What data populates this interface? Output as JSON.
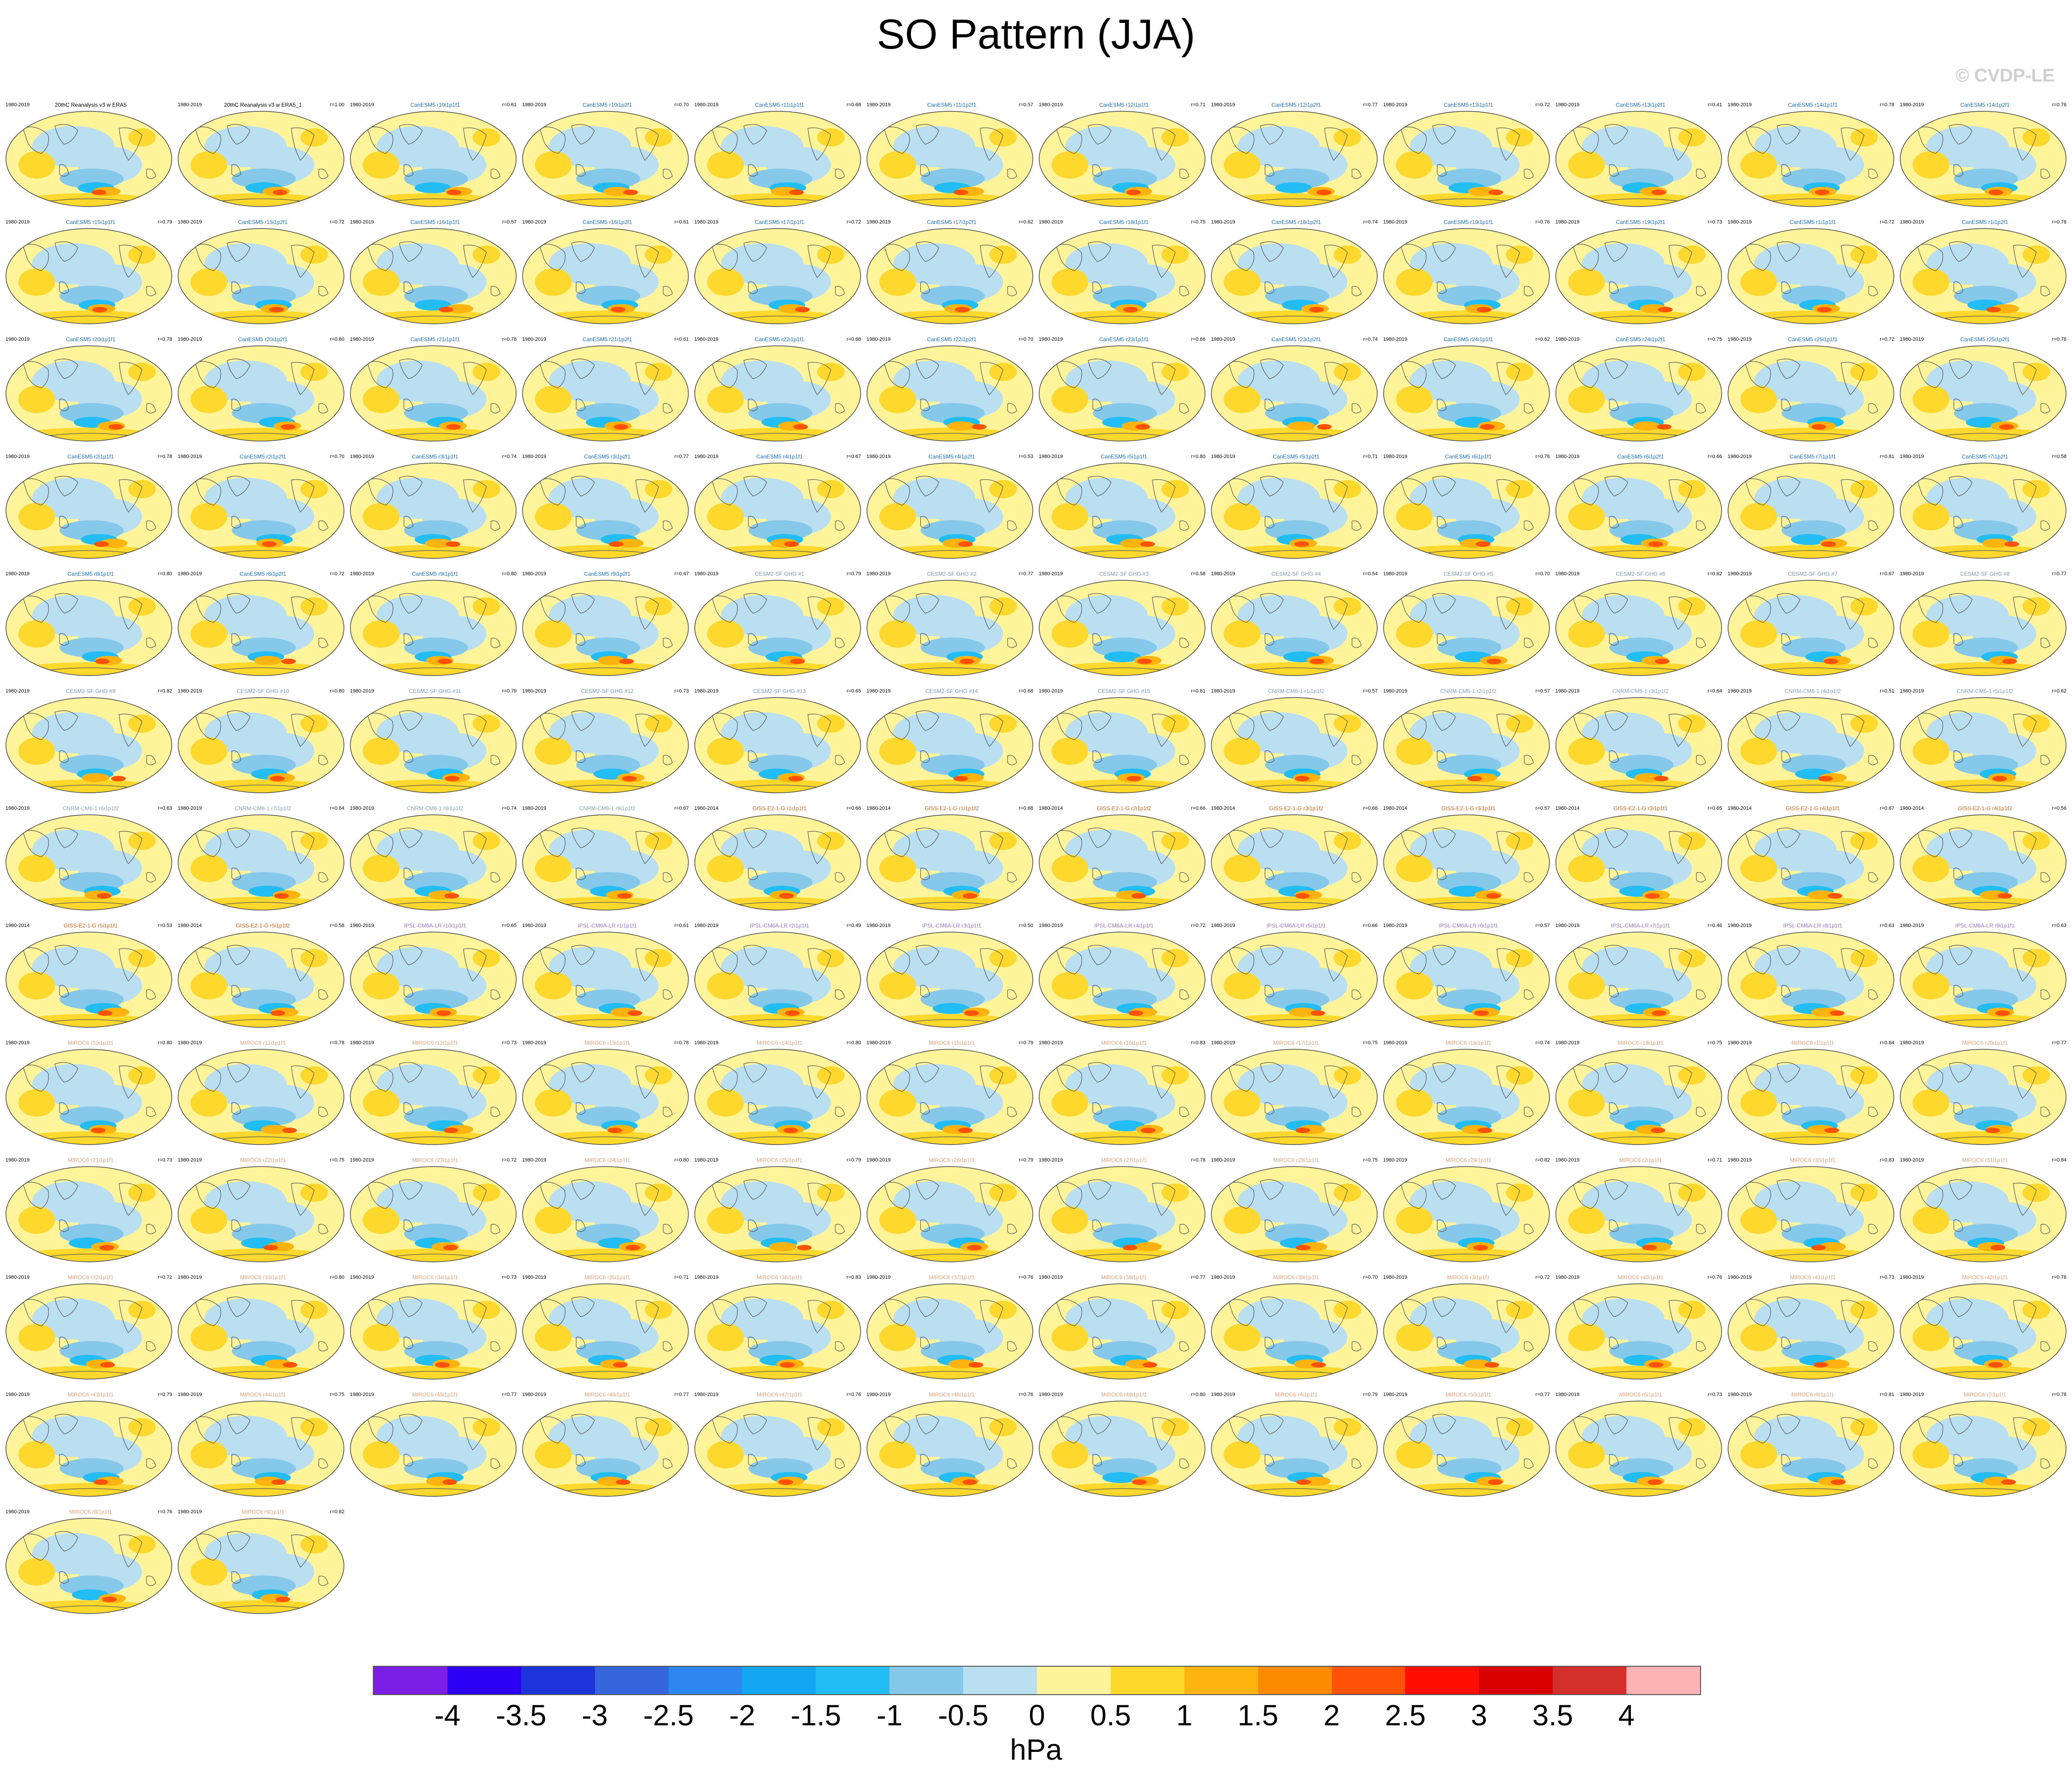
{
  "title": "SO Pattern (JJA)",
  "watermark": "© CVDP-LE",
  "units": "hPa",
  "colorbar": {
    "ticks": [
      "-4",
      "-3.5",
      "-3",
      "-2.5",
      "-2",
      "-1.5",
      "-1",
      "-0.5",
      "0",
      "0.5",
      "1",
      "1.5",
      "2",
      "2.5",
      "3",
      "3.5",
      "4"
    ],
    "colors": [
      "#7c1fe6",
      "#2b00f5",
      "#1c34d9",
      "#3566dc",
      "#2e86f0",
      "#13a6f2",
      "#22bdf4",
      "#86c8ea",
      "#b9dff0",
      "#fff49a",
      "#fed82d",
      "#feb30f",
      "#fe8a00",
      "#fe5207",
      "#fe0e00",
      "#d80000",
      "#d42f2d",
      "#fbb3b3"
    ]
  },
  "panels": [
    {
      "title": "20thC Reanalysis v3 w ERA5",
      "years": "1980-2019",
      "corr": "",
      "color": "#000000"
    },
    {
      "title": "20thC Reanalysis v3 w ERA5_1",
      "years": "1980-2019",
      "corr": "r=1.00",
      "color": "#000000"
    },
    {
      "title": "CanESM5 r10i1p1f1",
      "years": "1980-2019",
      "corr": "r=0.61",
      "color": "#1a6fbf"
    },
    {
      "title": "CanESM5 r10i1p2f1",
      "years": "1980-2019",
      "corr": "r=0.70",
      "color": "#1a6fbf"
    },
    {
      "title": "CanESM5 r11i1p1f1",
      "years": "1980-2019",
      "corr": "r=0.68",
      "color": "#1a6fbf"
    },
    {
      "title": "CanESM5 r11i1p2f1",
      "years": "1980-2019",
      "corr": "r=0.57",
      "color": "#1a6fbf"
    },
    {
      "title": "CanESM5 r12i1p1f1",
      "years": "1980-2019",
      "corr": "r=0.71",
      "color": "#1a6fbf"
    },
    {
      "title": "CanESM5 r12i1p2f1",
      "years": "1980-2019",
      "corr": "r=0.77",
      "color": "#1a6fbf"
    },
    {
      "title": "CanESM5 r13i1p1f1",
      "years": "1980-2019",
      "corr": "r=0.72",
      "color": "#1a6fbf"
    },
    {
      "title": "CanESM5 r13i1p2f1",
      "years": "1980-2019",
      "corr": "r=0.41",
      "color": "#1a6fbf"
    },
    {
      "title": "CanESM5 r14i1p1f1",
      "years": "1980-2019",
      "corr": "r=0.78",
      "color": "#1a6fbf"
    },
    {
      "title": "CanESM5 r14i1p2f1",
      "years": "1980-2019",
      "corr": "r=0.76",
      "color": "#1a6fbf"
    },
    {
      "title": "CanESM5 r15i1p1f1",
      "years": "1980-2019",
      "corr": "r=0.79",
      "color": "#1a6fbf"
    },
    {
      "title": "CanESM5 r15i1p2f1",
      "years": "1980-2019",
      "corr": "r=0.72",
      "color": "#1a6fbf"
    },
    {
      "title": "CanESM5 r16i1p1f1",
      "years": "1980-2019",
      "corr": "r=0.57",
      "color": "#1a6fbf"
    },
    {
      "title": "CanESM5 r16i1p2f1",
      "years": "1980-2019",
      "corr": "r=0.61",
      "color": "#1a6fbf"
    },
    {
      "title": "CanESM5 r17i1p1f1",
      "years": "1980-2019",
      "corr": "r=0.72",
      "color": "#1a6fbf"
    },
    {
      "title": "CanESM5 r17i1p2f1",
      "years": "1980-2019",
      "corr": "r=0.62",
      "color": "#1a6fbf"
    },
    {
      "title": "CanESM5 r18i1p1f1",
      "years": "1980-2019",
      "corr": "r=0.75",
      "color": "#1a6fbf"
    },
    {
      "title": "CanESM5 r18i1p2f1",
      "years": "1980-2019",
      "corr": "r=0.74",
      "color": "#1a6fbf"
    },
    {
      "title": "CanESM5 r19i1p1f1",
      "years": "1980-2019",
      "corr": "r=0.76",
      "color": "#1a6fbf"
    },
    {
      "title": "CanESM5 r19i1p2f1",
      "years": "1980-2019",
      "corr": "r=0.73",
      "color": "#1a6fbf"
    },
    {
      "title": "CanESM5 r1i1p1f1",
      "years": "1980-2019",
      "corr": "r=0.72",
      "color": "#1a6fbf"
    },
    {
      "title": "CanESM5 r1i1p2f1",
      "years": "1980-2019",
      "corr": "r=0.78",
      "color": "#1a6fbf"
    },
    {
      "title": "CanESM5 r20i1p1f1",
      "years": "1980-2019",
      "corr": "r=0.78",
      "color": "#1a6fbf"
    },
    {
      "title": "CanESM5 r20i1p2f1",
      "years": "1980-2019",
      "corr": "r=0.80",
      "color": "#1a6fbf"
    },
    {
      "title": "CanESM5 r21i1p1f1",
      "years": "1980-2019",
      "corr": "r=0.78",
      "color": "#1a6fbf"
    },
    {
      "title": "CanESM5 r21i1p2f1",
      "years": "1980-2019",
      "corr": "r=0.61",
      "color": "#1a6fbf"
    },
    {
      "title": "CanESM5 r22i1p1f1",
      "years": "1980-2019",
      "corr": "r=0.68",
      "color": "#1a6fbf"
    },
    {
      "title": "CanESM5 r22i1p2f1",
      "years": "1980-2019",
      "corr": "r=0.70",
      "color": "#1a6fbf"
    },
    {
      "title": "CanESM5 r23i1p1f1",
      "years": "1980-2019",
      "corr": "r=0.66",
      "color": "#1a6fbf"
    },
    {
      "title": "CanESM5 r23i1p2f1",
      "years": "1980-2019",
      "corr": "r=0.74",
      "color": "#1a6fbf"
    },
    {
      "title": "CanESM5 r24i1p1f1",
      "years": "1980-2019",
      "corr": "r=0.62",
      "color": "#1a6fbf"
    },
    {
      "title": "CanESM5 r24i1p2f1",
      "years": "1980-2019",
      "corr": "r=0.75",
      "color": "#1a6fbf"
    },
    {
      "title": "CanESM5 r25i1p1f1",
      "years": "1980-2019",
      "corr": "r=0.72",
      "color": "#1a6fbf"
    },
    {
      "title": "CanESM5 r25i1p2f1",
      "years": "1980-2019",
      "corr": "r=0.76",
      "color": "#1a6fbf"
    },
    {
      "title": "CanESM5 r2i1p1f1",
      "years": "1980-2019",
      "corr": "r=0.78",
      "color": "#1a6fbf"
    },
    {
      "title": "CanESM5 r2i1p2f1",
      "years": "1980-2019",
      "corr": "r=0.70",
      "color": "#1a6fbf"
    },
    {
      "title": "CanESM5 r3i1p1f1",
      "years": "1980-2019",
      "corr": "r=0.74",
      "color": "#1a6fbf"
    },
    {
      "title": "CanESM5 r3i1p2f1",
      "years": "1980-2019",
      "corr": "r=0.77",
      "color": "#1a6fbf"
    },
    {
      "title": "CanESM5 r4i1p1f1",
      "years": "1980-2019",
      "corr": "r=0.67",
      "color": "#1a6fbf"
    },
    {
      "title": "CanESM5 r4i1p2f1",
      "years": "1980-2019",
      "corr": "r=0.53",
      "color": "#1a6fbf"
    },
    {
      "title": "CanESM5 r5i1p1f1",
      "years": "1980-2019",
      "corr": "r=0.80",
      "color": "#1a6fbf"
    },
    {
      "title": "CanESM5 r5i1p2f1",
      "years": "1980-2019",
      "corr": "r=0.71",
      "color": "#1a6fbf"
    },
    {
      "title": "CanESM5 r6i1p1f1",
      "years": "1980-2019",
      "corr": "r=0.76",
      "color": "#1a6fbf"
    },
    {
      "title": "CanESM5 r6i1p2f1",
      "years": "1980-2019",
      "corr": "r=0.66",
      "color": "#1a6fbf"
    },
    {
      "title": "CanESM5 r7i1p1f1",
      "years": "1980-2019",
      "corr": "r=0.81",
      "color": "#1a6fbf"
    },
    {
      "title": "CanESM5 r7i1p2f1",
      "years": "1980-2019",
      "corr": "r=0.58",
      "color": "#1a6fbf"
    },
    {
      "title": "CanESM5 r8i1p1f1",
      "years": "1980-2019",
      "corr": "r=0.80",
      "color": "#1a6fbf"
    },
    {
      "title": "CanESM5 r8i1p2f1",
      "years": "1980-2019",
      "corr": "r=0.72",
      "color": "#1a6fbf"
    },
    {
      "title": "CanESM5 r9i1p1f1",
      "years": "1980-2019",
      "corr": "r=0.80",
      "color": "#1a6fbf"
    },
    {
      "title": "CanESM5 r9i1p2f1",
      "years": "1980-2019",
      "corr": "r=0.47",
      "color": "#1a6fbf"
    },
    {
      "title": "CESM2-SF GHG #1",
      "years": "1980-2019",
      "corr": "r=0.79",
      "color": "#7a9aa8"
    },
    {
      "title": "CESM2-SF GHG #2",
      "years": "1980-2019",
      "corr": "r=0.77",
      "color": "#7a9aa8"
    },
    {
      "title": "CESM2-SF GHG #3",
      "years": "1980-2019",
      "corr": "r=0.58",
      "color": "#7a9aa8"
    },
    {
      "title": "CESM2-SF GHG #4",
      "years": "1980-2019",
      "corr": "r=0.54",
      "color": "#7a9aa8"
    },
    {
      "title": "CESM2-SF GHG #5",
      "years": "1980-2019",
      "corr": "r=0.70",
      "color": "#7a9aa8"
    },
    {
      "title": "CESM2-SF GHG #6",
      "years": "1980-2019",
      "corr": "r=0.62",
      "color": "#7a9aa8"
    },
    {
      "title": "CESM2-SF GHG #7",
      "years": "1980-2019",
      "corr": "r=0.67",
      "color": "#7a9aa8"
    },
    {
      "title": "CESM2-SF GHG #8",
      "years": "1980-2019",
      "corr": "r=0.77",
      "color": "#7a9aa8"
    },
    {
      "title": "CESM2-SF GHG #9",
      "years": "1980-2019",
      "corr": "r=0.82",
      "color": "#7a9aa8"
    },
    {
      "title": "CESM2-SF GHG #10",
      "years": "1980-2019",
      "corr": "r=0.80",
      "color": "#7a9aa8"
    },
    {
      "title": "CESM2-SF GHG #11",
      "years": "1980-2019",
      "corr": "r=0.79",
      "color": "#7a9aa8"
    },
    {
      "title": "CESM2-SF GHG #12",
      "years": "1980-2019",
      "corr": "r=0.73",
      "color": "#7a9aa8"
    },
    {
      "title": "CESM2-SF GHG #13",
      "years": "1980-2019",
      "corr": "r=0.65",
      "color": "#7a9aa8"
    },
    {
      "title": "CESM2-SF GHG #14",
      "years": "1980-2019",
      "corr": "r=0.68",
      "color": "#7a9aa8"
    },
    {
      "title": "CESM2-SF GHG #15",
      "years": "1980-2019",
      "corr": "r=0.81",
      "color": "#7a9aa8"
    },
    {
      "title": "CNRM-CM6-1 r1i1p1f2",
      "years": "1980-2019",
      "corr": "r=0.57",
      "color": "#8aa0b0"
    },
    {
      "title": "CNRM-CM6-1 r2i1p1f2",
      "years": "1980-2019",
      "corr": "r=0.57",
      "color": "#8aa0b0"
    },
    {
      "title": "CNRM-CM6-1 r3i1p1f2",
      "years": "1980-2019",
      "corr": "r=0.64",
      "color": "#8aa0b0"
    },
    {
      "title": "CNRM-CM6-1 r4i1p1f2",
      "years": "1980-2019",
      "corr": "r=0.51",
      "color": "#8aa0b0"
    },
    {
      "title": "CNRM-CM6-1 r5i1p1f2",
      "years": "1980-2019",
      "corr": "r=0.62",
      "color": "#8aa0b0"
    },
    {
      "title": "CNRM-CM6-1 r6i1p1f2",
      "years": "1980-2019",
      "corr": "r=0.63",
      "color": "#8aa0b0"
    },
    {
      "title": "CNRM-CM6-1 r7i1p1f2",
      "years": "1980-2019",
      "corr": "r=0.64",
      "color": "#8aa0b0"
    },
    {
      "title": "CNRM-CM6-1 r8i1p1f2",
      "years": "1980-2019",
      "corr": "r=0.74",
      "color": "#8aa0b0"
    },
    {
      "title": "CNRM-CM6-1 r9i1p1f2",
      "years": "1980-2019",
      "corr": "r=0.67",
      "color": "#8aa0b0"
    },
    {
      "title": "GISS-E2-1-G r1i1p1f1",
      "years": "1980-2014",
      "corr": "r=0.66",
      "color": "#c8641e"
    },
    {
      "title": "GISS-E2-1-G r1i1p1f2",
      "years": "1980-2014",
      "corr": "r=0.68",
      "color": "#c8641e"
    },
    {
      "title": "GISS-E2-1-G r2i1p1f2",
      "years": "1980-2014",
      "corr": "r=0.66",
      "color": "#c8641e"
    },
    {
      "title": "GISS-E2-1-G r3i1p1f2",
      "years": "1980-2014",
      "corr": "r=0.66",
      "color": "#c8641e"
    },
    {
      "title": "GISS-E2-1-G r3i1p1f1",
      "years": "1980-2014",
      "corr": "r=0.57",
      "color": "#c8641e"
    },
    {
      "title": "GISS-E2-1-G r3i1p1f1",
      "years": "1980-2014",
      "corr": "r=0.65",
      "color": "#c8641e"
    },
    {
      "title": "GISS-E2-1-G r4i1p1f1",
      "years": "1980-2014",
      "corr": "r=0.67",
      "color": "#c8641e"
    },
    {
      "title": "GISS-E2-1-G r4i1p1f2",
      "years": "1980-2014",
      "corr": "r=0.56",
      "color": "#c8641e"
    },
    {
      "title": "GISS-E2-1-G r5i1p1f1",
      "years": "1980-2014",
      "corr": "r=0.53",
      "color": "#c8641e"
    },
    {
      "title": "GISS-E2-1-G r5i1p1f2",
      "years": "1980-2014",
      "corr": "r=0.58",
      "color": "#c8641e"
    },
    {
      "title": "IPSL-CM6A-LR r10i1p1f1",
      "years": "1980-2019",
      "corr": "r=0.65",
      "color": "#9b72c4"
    },
    {
      "title": "IPSL-CM6A-LR r1i1p1f1",
      "years": "1980-2019",
      "corr": "r=0.61",
      "color": "#9b72c4"
    },
    {
      "title": "IPSL-CM6A-LR r2i1p1f1",
      "years": "1980-2019",
      "corr": "r=0.49",
      "color": "#9b72c4"
    },
    {
      "title": "IPSL-CM6A-LR r3i1p1f1",
      "years": "1980-2019",
      "corr": "r=0.50",
      "color": "#9b72c4"
    },
    {
      "title": "IPSL-CM6A-LR r4i1p1f1",
      "years": "1980-2019",
      "corr": "r=0.72",
      "color": "#9b72c4"
    },
    {
      "title": "IPSL-CM6A-LR r5i1p1f1",
      "years": "1980-2019",
      "corr": "r=0.66",
      "color": "#9b72c4"
    },
    {
      "title": "IPSL-CM6A-LR r6i1p1f1",
      "years": "1980-2019",
      "corr": "r=0.57",
      "color": "#9b72c4"
    },
    {
      "title": "IPSL-CM6A-LR r7i1p1f1",
      "years": "1980-2019",
      "corr": "r=0.46",
      "color": "#9b72c4"
    },
    {
      "title": "IPSL-CM6A-LR r8i1p1f1",
      "years": "1980-2019",
      "corr": "r=0.63",
      "color": "#9b72c4"
    },
    {
      "title": "IPSL-CM6A-LR r9i1p1f1",
      "years": "1980-2019",
      "corr": "r=0.63",
      "color": "#9b72c4"
    },
    {
      "title": "MIROC6 r10i1p1f1",
      "years": "1980-2019",
      "corr": "r=0.80",
      "color": "#e5a07a"
    },
    {
      "title": "MIROC6 r11i1p1f1",
      "years": "1980-2019",
      "corr": "r=0.78",
      "color": "#e5a07a"
    },
    {
      "title": "MIROC6 r12i1p1f1",
      "years": "1980-2019",
      "corr": "r=0.73",
      "color": "#e5a07a"
    },
    {
      "title": "MIROC6 r13i1p1f1",
      "years": "1980-2019",
      "corr": "r=0.78",
      "color": "#e5a07a"
    },
    {
      "title": "MIROC6 r14i1p1f1",
      "years": "1980-2019",
      "corr": "r=0.80",
      "color": "#e5a07a"
    },
    {
      "title": "MIROC6 r15i1p1f1",
      "years": "1980-2019",
      "corr": "r=0.79",
      "color": "#e5a07a"
    },
    {
      "title": "MIROC6 r16i1p1f1",
      "years": "1980-2019",
      "corr": "r=0.83",
      "color": "#e5a07a"
    },
    {
      "title": "MIROC6 r17i1p1f1",
      "years": "1980-2019",
      "corr": "r=0.75",
      "color": "#e5a07a"
    },
    {
      "title": "MIROC6 r18i1p1f1",
      "years": "1980-2019",
      "corr": "r=0.74",
      "color": "#e5a07a"
    },
    {
      "title": "MIROC6 r19i1p1f1",
      "years": "1980-2019",
      "corr": "r=0.75",
      "color": "#e5a07a"
    },
    {
      "title": "MIROC6 r1i1p1f1",
      "years": "1980-2019",
      "corr": "r=0.84",
      "color": "#e5a07a"
    },
    {
      "title": "MIROC6 r20i1p1f1",
      "years": "1980-2019",
      "corr": "r=0.77",
      "color": "#e5a07a"
    },
    {
      "title": "MIROC6 r21i1p1f1",
      "years": "1980-2019",
      "corr": "r=0.73",
      "color": "#e5a07a"
    },
    {
      "title": "MIROC6 r22i1p1f1",
      "years": "1980-2019",
      "corr": "r=0.75",
      "color": "#e5a07a"
    },
    {
      "title": "MIROC6 r23i1p1f1",
      "years": "1980-2019",
      "corr": "r=0.72",
      "color": "#e5a07a"
    },
    {
      "title": "MIROC6 r24i1p1f1",
      "years": "1980-2019",
      "corr": "r=0.80",
      "color": "#e5a07a"
    },
    {
      "title": "MIROC6 r25i1p1f1",
      "years": "1980-2019",
      "corr": "r=0.79",
      "color": "#e5a07a"
    },
    {
      "title": "MIROC6 r26i1p1f1",
      "years": "1980-2019",
      "corr": "r=0.79",
      "color": "#e5a07a"
    },
    {
      "title": "MIROC6 r27i1p1f1",
      "years": "1980-2019",
      "corr": "r=0.78",
      "color": "#e5a07a"
    },
    {
      "title": "MIROC6 r28i1p1f1",
      "years": "1980-2019",
      "corr": "r=0.75",
      "color": "#e5a07a"
    },
    {
      "title": "MIROC6 r29i1p1f1",
      "years": "1980-2019",
      "corr": "r=0.82",
      "color": "#e5a07a"
    },
    {
      "title": "MIROC6 r2i1p1f1",
      "years": "1980-2019",
      "corr": "r=0.71",
      "color": "#e5a07a"
    },
    {
      "title": "MIROC6 r30i1p1f1",
      "years": "1980-2019",
      "corr": "r=0.83",
      "color": "#e5a07a"
    },
    {
      "title": "MIROC6 r31i1p1f1",
      "years": "1980-2019",
      "corr": "r=0.84",
      "color": "#e5a07a"
    },
    {
      "title": "MIROC6 r32i1p1f1",
      "years": "1980-2019",
      "corr": "r=0.72",
      "color": "#e5a07a"
    },
    {
      "title": "MIROC6 r33i1p1f1",
      "years": "1980-2019",
      "corr": "r=0.80",
      "color": "#e5a07a"
    },
    {
      "title": "MIROC6 r34i1p1f1",
      "years": "1980-2019",
      "corr": "r=0.73",
      "color": "#e5a07a"
    },
    {
      "title": "MIROC6 r35i1p1f1",
      "years": "1980-2019",
      "corr": "r=0.71",
      "color": "#e5a07a"
    },
    {
      "title": "MIROC6 r36i1p1f1",
      "years": "1980-2019",
      "corr": "r=0.83",
      "color": "#e5a07a"
    },
    {
      "title": "MIROC6 r37i1p1f1",
      "years": "1980-2019",
      "corr": "r=0.76",
      "color": "#e5a07a"
    },
    {
      "title": "MIROC6 r38i1p1f1",
      "years": "1980-2019",
      "corr": "r=0.77",
      "color": "#e5a07a"
    },
    {
      "title": "MIROC6 r39i1p1f1",
      "years": "1980-2019",
      "corr": "r=0.70",
      "color": "#e5a07a"
    },
    {
      "title": "MIROC6 r3i1p1f1",
      "years": "1980-2019",
      "corr": "r=0.72",
      "color": "#e5a07a"
    },
    {
      "title": "MIROC6 r40i1p1f1",
      "years": "1980-2019",
      "corr": "r=0.76",
      "color": "#e5a07a"
    },
    {
      "title": "MIROC6 r41i1p1f1",
      "years": "1980-2019",
      "corr": "r=0.73",
      "color": "#e5a07a"
    },
    {
      "title": "MIROC6 r42i1p1f1",
      "years": "1980-2019",
      "corr": "r=0.76",
      "color": "#e5a07a"
    },
    {
      "title": "MIROC6 r43i1p1f1",
      "years": "1980-2019",
      "corr": "r=0.79",
      "color": "#e5a07a"
    },
    {
      "title": "MIROC6 r44i1p1f1",
      "years": "1980-2019",
      "corr": "r=0.75",
      "color": "#e5a07a"
    },
    {
      "title": "MIROC6 r45i1p1f1",
      "years": "1980-2019",
      "corr": "r=0.77",
      "color": "#e5a07a"
    },
    {
      "title": "MIROC6 r46i1p1f1",
      "years": "1980-2019",
      "corr": "r=0.77",
      "color": "#e5a07a"
    },
    {
      "title": "MIROC6 r47i1p1f1",
      "years": "1980-2019",
      "corr": "r=0.76",
      "color": "#e5a07a"
    },
    {
      "title": "MIROC6 r48i1p1f1",
      "years": "1980-2019",
      "corr": "r=0.76",
      "color": "#e5a07a"
    },
    {
      "title": "MIROC6 r49i1p1f1",
      "years": "1980-2019",
      "corr": "r=0.80",
      "color": "#e5a07a"
    },
    {
      "title": "MIROC6 r4i1p1f1",
      "years": "1980-2019",
      "corr": "r=0.79",
      "color": "#e5a07a"
    },
    {
      "title": "MIROC6 r50i1p1f1",
      "years": "1980-2019",
      "corr": "r=0.77",
      "color": "#e5a07a"
    },
    {
      "title": "MIROC6 r5i1p1f1",
      "years": "1980-2019",
      "corr": "r=0.73",
      "color": "#e5a07a"
    },
    {
      "title": "MIROC6 r6i1p1f1",
      "years": "1980-2019",
      "corr": "r=0.81",
      "color": "#e5a07a"
    },
    {
      "title": "MIROC6 r7i1p1f1",
      "years": "1980-2019",
      "corr": "r=0.76",
      "color": "#e5a07a"
    },
    {
      "title": "MIROC6 r8i1p1f1",
      "years": "1980-2019",
      "corr": "r=0.76",
      "color": "#e5a07a"
    },
    {
      "title": "MIROC6 r9i1p1f1",
      "years": "1980-2019",
      "corr": "r=0.82",
      "color": "#e5a07a"
    }
  ]
}
